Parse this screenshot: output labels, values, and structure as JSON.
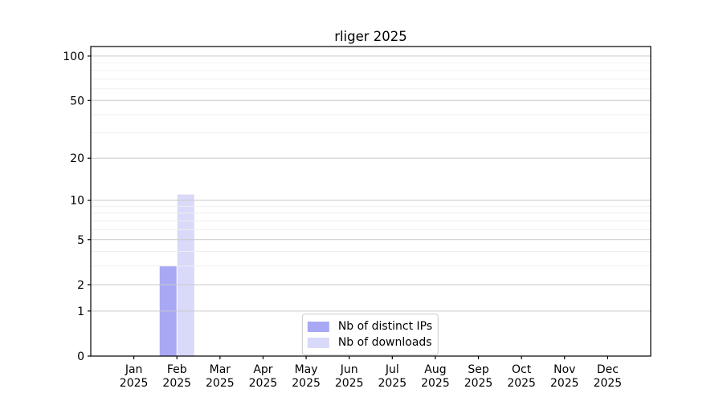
{
  "chart_data": {
    "type": "bar",
    "title": "rliger 2025",
    "categories": [
      "Jan",
      "Feb",
      "Mar",
      "Apr",
      "May",
      "Jun",
      "Jul",
      "Aug",
      "Sep",
      "Oct",
      "Nov",
      "Dec"
    ],
    "xtick_year": "2025",
    "series": [
      {
        "name": "Nb of distinct IPs",
        "color": "#a8a8f5",
        "values": [
          0,
          3,
          0,
          0,
          0,
          0,
          0,
          0,
          0,
          0,
          0,
          0
        ]
      },
      {
        "name": "Nb of downloads",
        "color": "#d9d9f9",
        "values": [
          0,
          11,
          0,
          0,
          0,
          0,
          0,
          0,
          0,
          0,
          0,
          0
        ]
      }
    ],
    "yscale": "log1p",
    "ylim": [
      0,
      116
    ],
    "yticks": [
      0,
      1,
      2,
      5,
      10,
      20,
      50,
      100
    ],
    "yticks_minor": [
      3,
      4,
      6,
      7,
      8,
      9,
      30,
      40,
      60,
      70,
      80,
      90
    ],
    "grid": true,
    "legend_position": "lower center",
    "colors": {
      "grid_major": "#c9c9c9",
      "grid_minor": "#efefef",
      "spine": "#000000",
      "text": "#000000"
    }
  }
}
